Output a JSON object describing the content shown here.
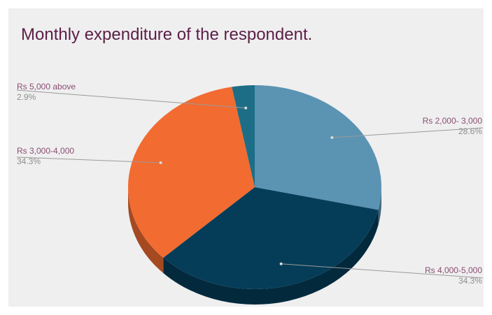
{
  "chart_data": {
    "type": "pie",
    "title": "Monthly expenditure of the respondent.",
    "categories": [
      "Rs 2,000- 3,000",
      "Rs 4,000-5,000",
      "Rs 3,000-4,000",
      "Rs 5,000 above"
    ],
    "values": [
      28.6,
      34.3,
      34.3,
      2.9
    ],
    "percent_labels": [
      "28.6%",
      "34.3%",
      "34.3%",
      "2.9%"
    ],
    "colors": [
      "#5b93b3",
      "#053d59",
      "#f26b30",
      "#1d6d86"
    ],
    "style": "3d",
    "legend": "none"
  }
}
